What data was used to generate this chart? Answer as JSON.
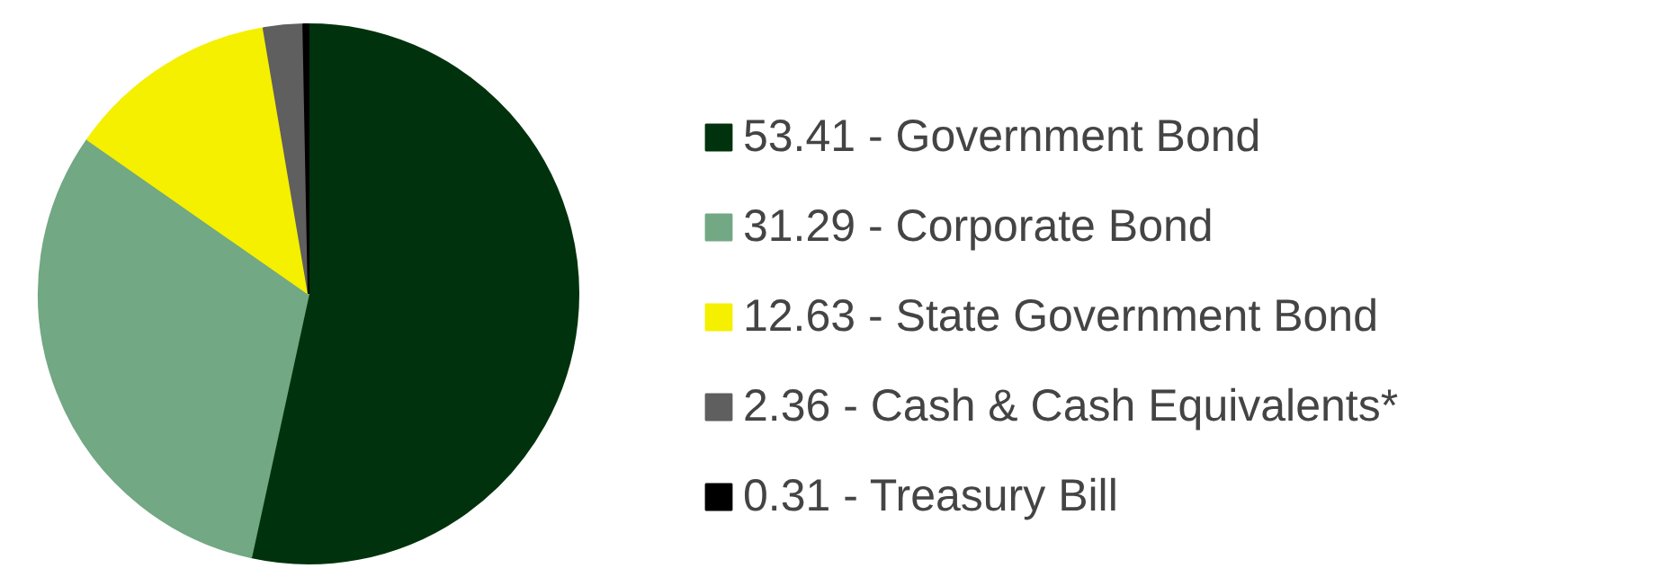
{
  "chart_data": {
    "type": "pie",
    "categories": [
      "53.41 - Government Bond",
      "31.29 - Corporate Bond",
      "12.63 - State Government Bond",
      "2.36 - Cash & Cash Equivalents*",
      "0.31 - Treasury Bill"
    ],
    "values": [
      53.41,
      31.29,
      12.63,
      2.36,
      0.31
    ],
    "colors": [
      "#00330d",
      "#72a883",
      "#f5ef00",
      "#5f5f5f",
      "#000000"
    ],
    "legend": "right"
  }
}
